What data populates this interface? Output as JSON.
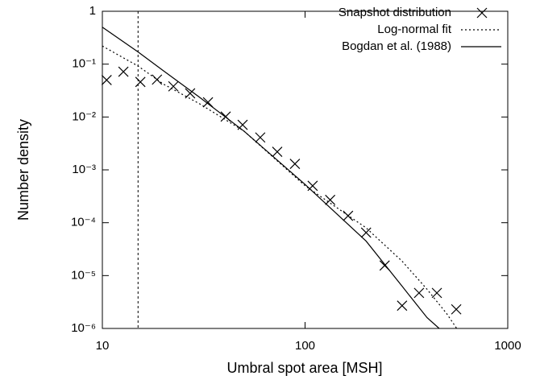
{
  "chart_data": {
    "type": "scatter",
    "xlabel": "Umbral spot area [MSH]",
    "ylabel": "Number density",
    "xscale": "log",
    "yscale": "log",
    "xlim": [
      10,
      1000
    ],
    "ylim": [
      1e-06,
      1
    ],
    "xticks": [
      10,
      100,
      1000
    ],
    "yticks": [
      {
        "value": 1e-06,
        "label": "10⁻⁶"
      },
      {
        "value": 1e-05,
        "label": "10⁻⁵"
      },
      {
        "value": 0.0001,
        "label": "10⁻⁴"
      },
      {
        "value": 0.001,
        "label": "10⁻³"
      },
      {
        "value": 0.01,
        "label": "10⁻²"
      },
      {
        "value": 0.1,
        "label": "10⁻¹"
      },
      1
    ],
    "vline": 15,
    "legend": "upper right",
    "series": [
      {
        "name": "Snapshot distribution",
        "type": "scatter",
        "marker": "x",
        "color": "#000000",
        "x": [
          10.5,
          12.7,
          15.4,
          18.6,
          22.4,
          27.1,
          33.2,
          40.6,
          49.2,
          60.1,
          72.9,
          89.1,
          109,
          133,
          163,
          200,
          247,
          301,
          365,
          447,
          557
        ],
        "values": [
          0.05,
          0.072,
          0.046,
          0.051,
          0.038,
          0.028,
          0.019,
          0.0102,
          0.0071,
          0.0041,
          0.0022,
          0.0013,
          0.0005,
          0.00027,
          0.000135,
          6.5e-05,
          1.55e-05,
          2.7e-06,
          4.7e-06,
          4.7e-06,
          2.3e-06
        ]
      },
      {
        "name": "Log-normal fit",
        "type": "line",
        "dash": "dotted",
        "color": "#000000",
        "x": [
          10,
          15,
          20,
          30,
          50,
          100,
          200,
          300,
          400,
          500,
          560
        ],
        "values": [
          0.22,
          0.092,
          0.042,
          0.018,
          0.0054,
          0.0005,
          8e-05,
          1.9e-05,
          5.5e-06,
          1.9e-06,
          1e-06
        ]
      },
      {
        "name": "Bogdan et al. (1988)",
        "type": "line",
        "dash": "solid",
        "color": "#000000",
        "x": [
          10,
          15,
          20,
          30,
          50,
          100,
          200,
          300,
          400,
          459
        ],
        "values": [
          0.5,
          0.17,
          0.075,
          0.024,
          0.0054,
          0.00053,
          4.5e-05,
          6.4e-06,
          1.6e-06,
          1e-06
        ]
      }
    ]
  }
}
